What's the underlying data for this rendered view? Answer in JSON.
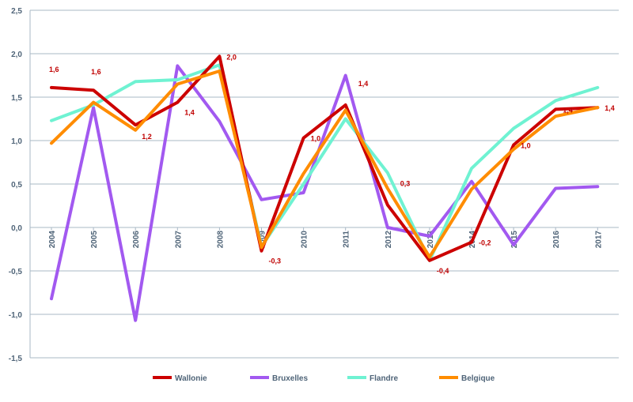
{
  "chart_data": {
    "type": "line",
    "title": "",
    "xlabel": "",
    "ylabel": "",
    "x": [
      "2004",
      "2005",
      "2006",
      "2007",
      "2008",
      "2009",
      "2010",
      "2011",
      "2012",
      "2013",
      "2014",
      "2015",
      "2016",
      "2017"
    ],
    "ylim": [
      -1.5,
      2.5
    ],
    "yticks": [
      "-1,5",
      "-1,0",
      "-0,5",
      "0,0",
      "0,5",
      "1,0",
      "1,5",
      "2,0",
      "2,5"
    ],
    "grid": "horizontal",
    "legend_position": "bottom",
    "series": [
      {
        "name": "Wallonie",
        "color": "#cc0000",
        "values": [
          1.61,
          1.58,
          1.18,
          1.44,
          1.97,
          -0.27,
          1.03,
          1.41,
          0.26,
          -0.38,
          -0.17,
          0.95,
          1.36,
          1.38
        ]
      },
      {
        "name": "Bruxelles",
        "color": "#a259f0",
        "values": [
          -0.82,
          1.38,
          -1.07,
          1.86,
          1.22,
          0.32,
          0.4,
          1.75,
          0.0,
          -0.1,
          0.53,
          -0.2,
          0.45,
          0.47
        ]
      },
      {
        "name": "Flandre",
        "color": "#6ff2d2",
        "values": [
          1.23,
          1.41,
          1.68,
          1.7,
          1.87,
          -0.22,
          0.5,
          1.25,
          0.63,
          -0.38,
          0.68,
          1.14,
          1.46,
          1.61
        ]
      },
      {
        "name": "Belgique",
        "color": "#ff8c00",
        "values": [
          0.97,
          1.44,
          1.12,
          1.65,
          1.8,
          -0.23,
          0.62,
          1.35,
          0.45,
          -0.34,
          0.44,
          0.9,
          1.28,
          1.38
        ]
      }
    ],
    "data_labels": [
      {
        "series": "Wallonie",
        "index": 0,
        "text": "1,6",
        "pos": "above"
      },
      {
        "series": "Wallonie",
        "index": 1,
        "text": "1,6",
        "pos": "above"
      },
      {
        "series": "Wallonie",
        "index": 2,
        "text": "1,2",
        "pos": "below"
      },
      {
        "series": "Wallonie",
        "index": 3,
        "text": "1,4",
        "pos": "below-right"
      },
      {
        "series": "Wallonie",
        "index": 4,
        "text": "2,0",
        "pos": "right"
      },
      {
        "series": "Wallonie",
        "index": 5,
        "text": "-0,3",
        "pos": "below-right"
      },
      {
        "series": "Wallonie",
        "index": 6,
        "text": "1,0",
        "pos": "right"
      },
      {
        "series": "Wallonie",
        "index": 7,
        "text": "1,4",
        "pos": "above-right"
      },
      {
        "series": "Wallonie",
        "index": 8,
        "text": "0,3",
        "pos": "above-right"
      },
      {
        "series": "Wallonie",
        "index": 9,
        "text": "-0,4",
        "pos": "below-right"
      },
      {
        "series": "Wallonie",
        "index": 10,
        "text": "-0,2",
        "pos": "right"
      },
      {
        "series": "Wallonie",
        "index": 11,
        "text": "1,0",
        "pos": "right"
      },
      {
        "series": "Wallonie",
        "index": 12,
        "text": "1,4",
        "pos": "right"
      },
      {
        "series": "Wallonie",
        "index": 13,
        "text": "1,4",
        "pos": "right"
      }
    ]
  }
}
